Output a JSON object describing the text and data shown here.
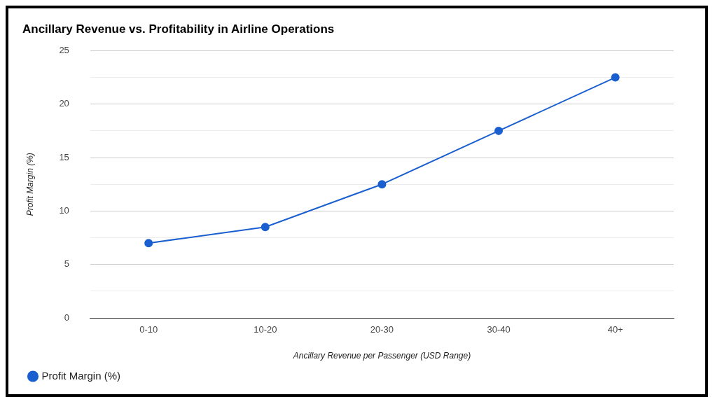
{
  "chart_data": {
    "type": "line",
    "title": "Ancillary Revenue vs. Profitability in Airline Operations",
    "xlabel": "Ancillary Revenue per Passenger (USD Range)",
    "ylabel": "Profit Margin (%)",
    "categories": [
      "0-10",
      "10-20",
      "20-30",
      "30-40",
      "40+"
    ],
    "series": [
      {
        "name": "Profit Margin (%)",
        "color": "#1a5fd0",
        "values": [
          7,
          8.5,
          12.5,
          17.5,
          22.5
        ]
      }
    ],
    "ylim": [
      0,
      25
    ],
    "yticks": [
      0,
      {
        "value": 2.5,
        "label": null
      },
      5,
      {
        "value": 7.5,
        "label": null
      },
      10,
      {
        "value": 12.5,
        "label": null
      },
      15,
      {
        "value": 17.5,
        "label": null
      },
      20,
      {
        "value": 22.5,
        "label": null
      },
      25
    ],
    "grid": "y",
    "legend": "bottom left",
    "marker": "circle",
    "line_style": "solid"
  }
}
